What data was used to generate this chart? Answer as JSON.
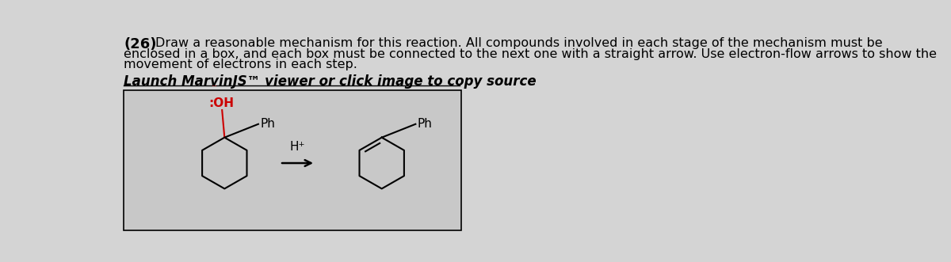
{
  "bg_color": "#d4d4d4",
  "title_number": "(26)",
  "title_line1": "Draw a reasonable mechanism for this reaction. All compounds involved in each stage of the mechanism must be",
  "title_line2": "enclosed in a box, and each box must be connected to the next one with a straight arrow. Use electron-flow arrows to show the",
  "title_line3": "movement of electrons in each step.",
  "link_text": "Launch MarvinJS™ viewer or click image to copy source",
  "arrow_label": "H⁺",
  "oh_label": ":OH",
  "ph_label1": "Ph",
  "ph_label2": "Ph",
  "box_facecolor": "#c8c8c8",
  "oh_color": "#cc0000",
  "black": "#000000"
}
